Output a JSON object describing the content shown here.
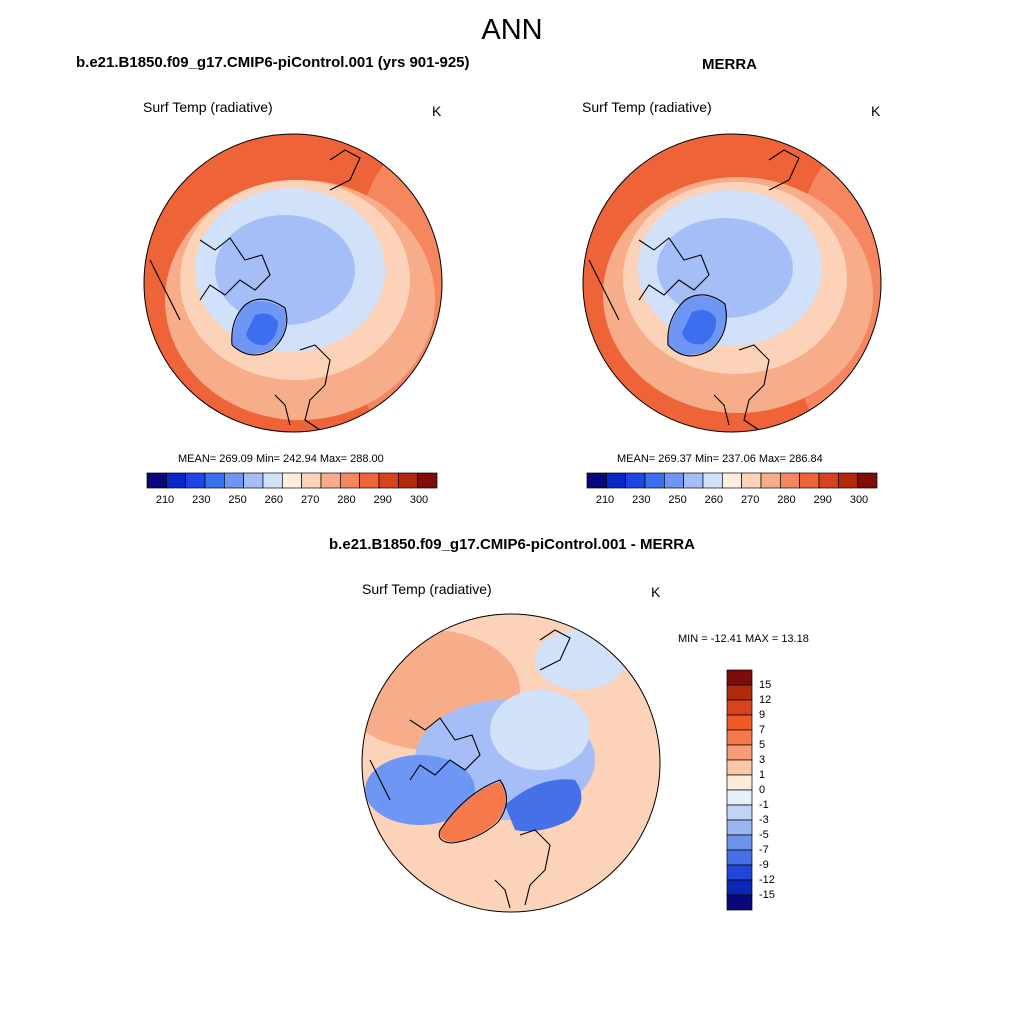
{
  "title": "ANN",
  "panels": [
    {
      "id": "model",
      "title": "b.e21.B1850.f09_g17.CMIP6-piControl.001 (yrs 901-925)",
      "variable": "Surf Temp (radiative)",
      "units": "K",
      "stats": "MEAN= 269.09  Min= 242.94  Max= 288.00"
    },
    {
      "id": "obs",
      "title": "MERRA",
      "variable": "Surf Temp (radiative)",
      "units": "K",
      "stats": "MEAN= 269.37  Min= 237.06  Max= 286.84"
    },
    {
      "id": "diff",
      "title": "b.e21.B1850.f09_g17.CMIP6-piControl.001 - MERRA",
      "variable": "Surf Temp (radiative)",
      "units": "K",
      "stats": "MIN = -12.41 MAX =  13.18"
    }
  ],
  "colorbar_abs": {
    "ticks": [
      "210",
      "230",
      "250",
      "260",
      "270",
      "280",
      "290",
      "300"
    ],
    "colors": [
      "#08087a",
      "#0a28c8",
      "#1e46e6",
      "#3c6ef0",
      "#6e96f5",
      "#a5bef7",
      "#d2e1fa",
      "#fdeee0",
      "#fcd2b9",
      "#f7ad8a",
      "#f58660",
      "#ee6338",
      "#d9421e",
      "#b22a0c",
      "#7e0c0a"
    ]
  },
  "colorbar_diff": {
    "ticks": [
      "15",
      "12",
      "9",
      "7",
      "5",
      "3",
      "1",
      "0",
      "-1",
      "-3",
      "-5",
      "-7",
      "-9",
      "-12",
      "-15"
    ],
    "colors": [
      "#7e0c0a",
      "#b22a0c",
      "#d9421e",
      "#f05a26",
      "#f5794a",
      "#f79c76",
      "#fbc7a6",
      "#fdecdc",
      "#e8f0fb",
      "#c2d3f5",
      "#99b6f0",
      "#6e93ec",
      "#4670e8",
      "#2147d8",
      "#0a26b4",
      "#08087a"
    ]
  },
  "map_palette": {
    "warm_dark": "#ee6338",
    "warm_mid": "#f58660",
    "warm_light": "#f7ad8a",
    "warm_pale": "#fcd2b9",
    "cream": "#fdeee0",
    "cool_pale": "#d2e1fa",
    "cool_light": "#a5bef7",
    "cool_mid": "#6e96f5",
    "cool_dark": "#3c6ef0",
    "diff_warm": "#f5794a",
    "diff_cool": "#4670e8"
  }
}
